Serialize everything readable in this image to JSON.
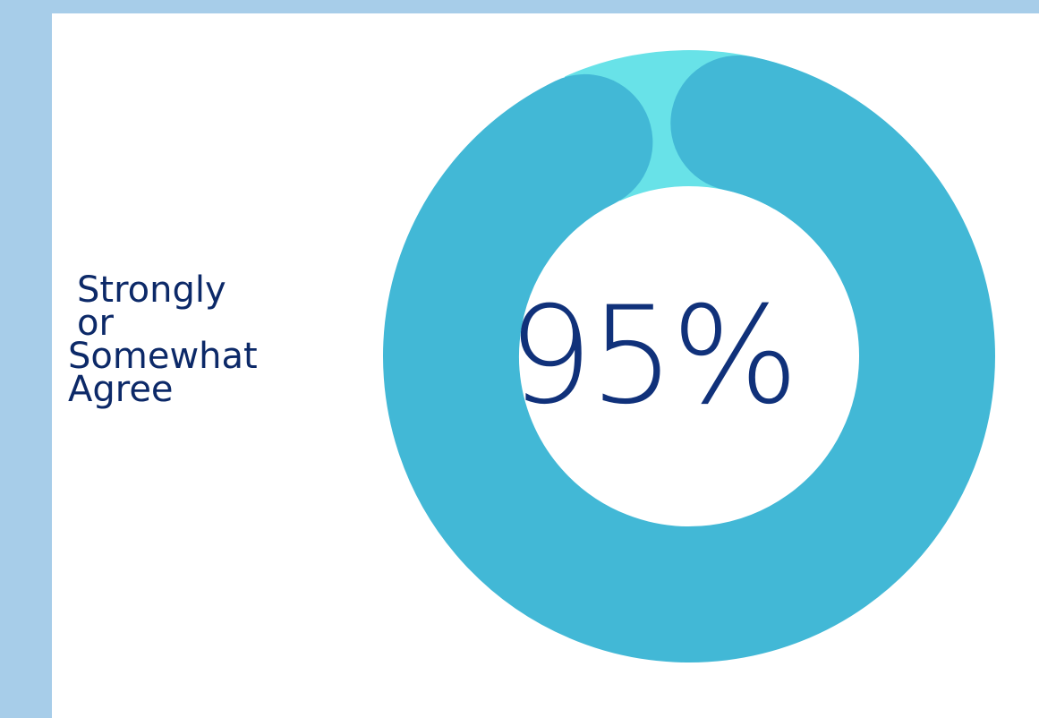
{
  "chart_data": {
    "type": "pie",
    "variant": "donut",
    "center_label": "95%",
    "side_label_lines": [
      "Strongly",
      "or",
      "Somewhat",
      "Agree"
    ],
    "slices": [
      {
        "label": "Strongly or Somewhat Agree",
        "value": 95,
        "color": "#42b8d6"
      },
      {
        "label": "",
        "value": 5,
        "color": "#68e2e8"
      }
    ]
  },
  "colors": {
    "background": "#a7cde9",
    "card": "#ffffff",
    "text": "#0c2968"
  }
}
